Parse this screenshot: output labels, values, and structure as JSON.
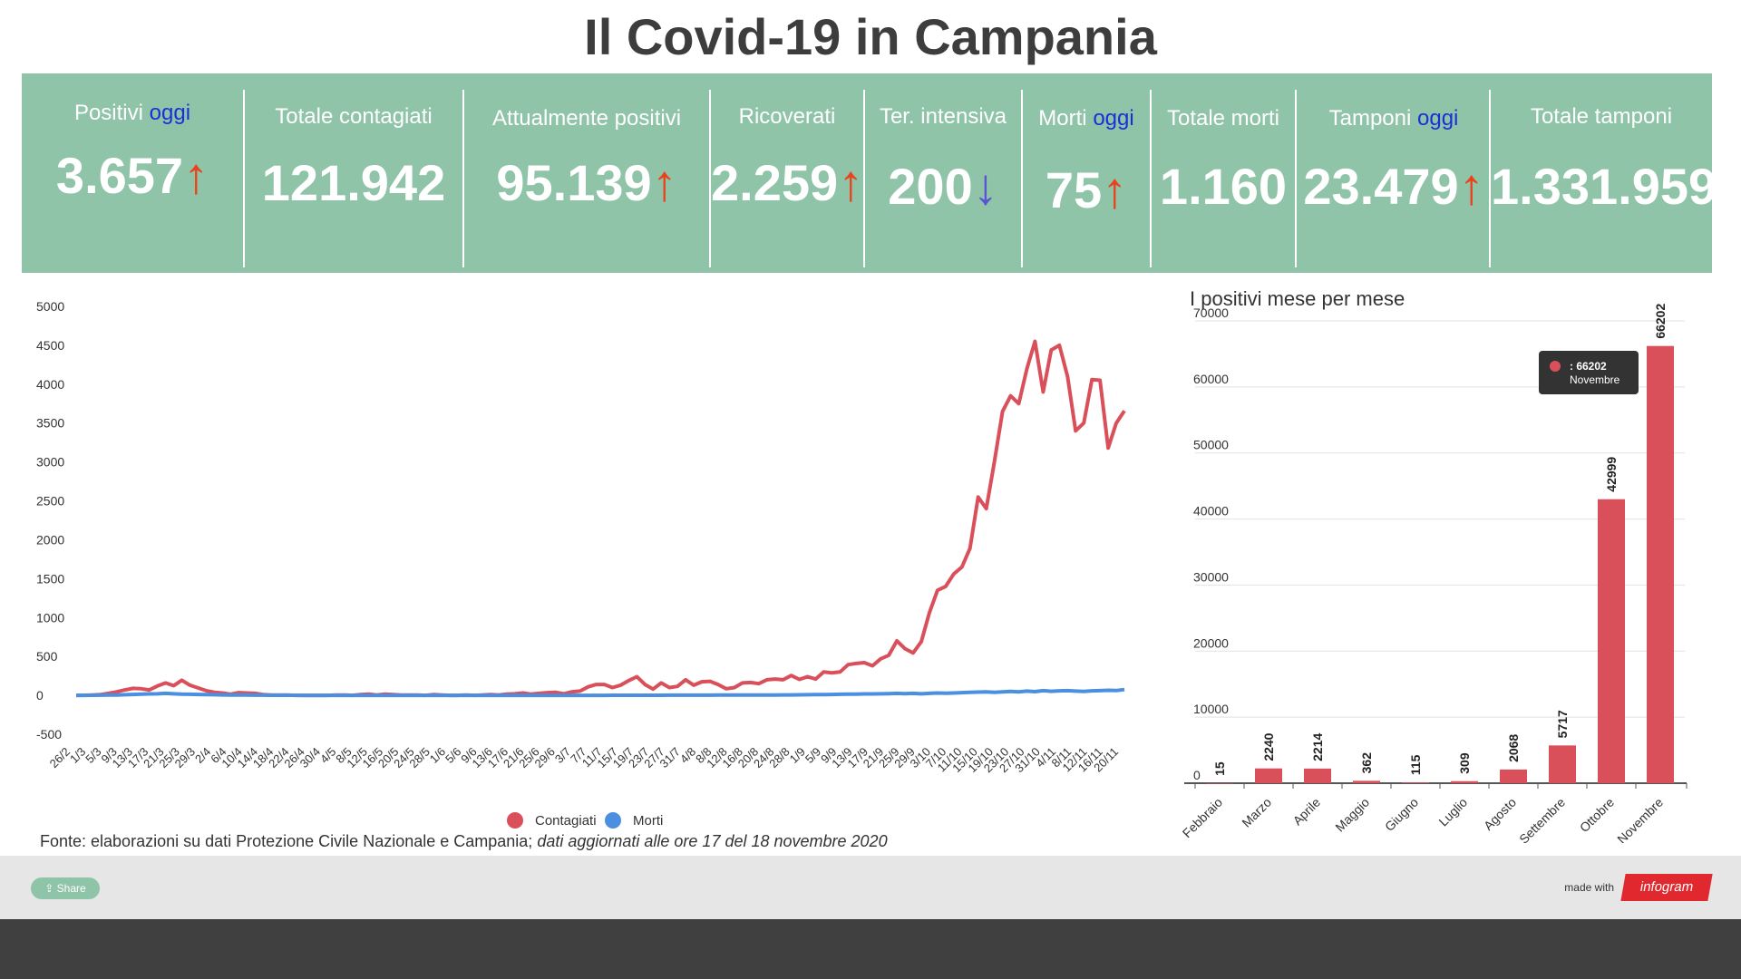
{
  "title": "Il Covid-19 in Campania",
  "stats": [
    {
      "label": "Positivi",
      "today": "oggi",
      "value": "3.657",
      "arrow": "↑",
      "dir": "up"
    },
    {
      "label": "Totale contagiati",
      "today": "",
      "value": "121.942",
      "arrow": "",
      "dir": ""
    },
    {
      "label": "Attualmente positivi",
      "today": "",
      "value": "95.139",
      "arrow": "↑",
      "dir": "up"
    },
    {
      "label": "Ricoverati",
      "today": "",
      "value": "2.259",
      "arrow": "↑",
      "dir": "up"
    },
    {
      "label": "Ter. intensiva",
      "today": "",
      "value": "200",
      "arrow": "↓",
      "dir": "down"
    },
    {
      "label": "Morti",
      "today": "oggi",
      "value": "75",
      "arrow": "↑",
      "dir": "up"
    },
    {
      "label": "Totale morti",
      "today": "",
      "value": "1.160",
      "arrow": "",
      "dir": ""
    },
    {
      "label": "Tamponi",
      "today": "oggi",
      "value": "23.479",
      "arrow": "↑",
      "dir": "up"
    },
    {
      "label": "Totale tamponi",
      "today": "",
      "value": "1.331.959",
      "arrow": "",
      "dir": ""
    }
  ],
  "chart_data": [
    {
      "type": "line",
      "title": "",
      "xlabel": "",
      "ylabel": "",
      "ylim": [
        -500,
        5000
      ],
      "yticks": [
        5000,
        4500,
        4000,
        3500,
        3000,
        2500,
        2000,
        1500,
        1000,
        500,
        0,
        -500
      ],
      "x_labels": [
        "26/2",
        "1/3",
        "5/3",
        "9/3",
        "13/3",
        "17/3",
        "21/3",
        "25/3",
        "29/3",
        "2/4",
        "6/4",
        "10/4",
        "14/4",
        "18/4",
        "22/4",
        "26/4",
        "30/4",
        "4/5",
        "8/5",
        "12/5",
        "16/5",
        "20/5",
        "24/5",
        "28/5",
        "1/6",
        "5/6",
        "9/6",
        "13/6",
        "17/6",
        "21/6",
        "25/6",
        "29/6",
        "3/7",
        "7/7",
        "11/7",
        "15/7",
        "19/7",
        "23/7",
        "27/7",
        "31/7",
        "4/8",
        "8/8",
        "12/8",
        "16/8",
        "20/8",
        "24/8",
        "28/8",
        "1/9",
        "5/9",
        "9/9",
        "13/9",
        "17/9",
        "21/9",
        "25/9",
        "29/9",
        "3/10",
        "7/10",
        "11/10",
        "15/10",
        "19/10",
        "23/10",
        "27/10",
        "31/10",
        "4/11",
        "8/11",
        "12/11",
        "16/11",
        "20/11"
      ],
      "legend": [
        "Contagiati",
        "Morti"
      ],
      "legend_position": "bottom",
      "series": [
        {
          "name": "Contagiati",
          "color": "#d9505a",
          "values": [
            0,
            1,
            5,
            10,
            25,
            45,
            70,
            90,
            85,
            70,
            120,
            160,
            125,
            195,
            130,
            95,
            60,
            40,
            30,
            15,
            35,
            30,
            25,
            10,
            5,
            5,
            5,
            0,
            0,
            0,
            0,
            0,
            5,
            5,
            0,
            10,
            15,
            5,
            15,
            10,
            5,
            5,
            5,
            0,
            10,
            5,
            0,
            0,
            5,
            0,
            5,
            10,
            5,
            15,
            20,
            30,
            15,
            25,
            35,
            40,
            20,
            45,
            55,
            110,
            140,
            140,
            100,
            130,
            190,
            240,
            140,
            80,
            160,
            100,
            115,
            200,
            130,
            175,
            180,
            140,
            85,
            100,
            160,
            165,
            150,
            200,
            210,
            200,
            255,
            205,
            240,
            210,
            300,
            290,
            300,
            395,
            410,
            420,
            380,
            470,
            515,
            700,
            600,
            545,
            690,
            1060,
            1350,
            1400,
            1560,
            1650,
            1890,
            2550,
            2400,
            3000,
            3650,
            3850,
            3750,
            4200,
            4550,
            3900,
            4440,
            4500,
            4100,
            3400,
            3500,
            4060,
            4050,
            3180,
            3500,
            3657
          ]
        },
        {
          "name": "Morti",
          "color": "#4a8fe0",
          "values": [
            0,
            0,
            1,
            2,
            3,
            5,
            8,
            12,
            15,
            18,
            20,
            25,
            20,
            15,
            14,
            12,
            10,
            8,
            6,
            5,
            4,
            3,
            2,
            2,
            1,
            1,
            1,
            1,
            0,
            0,
            0,
            0,
            0,
            0,
            0,
            0,
            0,
            0,
            0,
            0,
            0,
            0,
            0,
            0,
            0,
            0,
            0,
            0,
            0,
            0,
            0,
            0,
            0,
            0,
            0,
            0,
            0,
            0,
            0,
            0,
            0,
            0,
            0,
            0,
            0,
            0,
            1,
            1,
            1,
            1,
            1,
            1,
            1,
            2,
            2,
            2,
            2,
            2,
            2,
            3,
            3,
            3,
            3,
            3,
            4,
            4,
            5,
            6,
            6,
            7,
            8,
            9,
            10,
            12,
            14,
            15,
            16,
            18,
            18,
            20,
            22,
            25,
            22,
            25,
            20,
            25,
            30,
            28,
            30,
            35,
            40,
            42,
            45,
            40,
            45,
            50,
            45,
            55,
            48,
            60,
            52,
            58,
            60,
            55,
            50,
            58,
            60,
            65,
            62,
            75
          ]
        }
      ]
    },
    {
      "type": "bar",
      "title": "I positivi mese per mese",
      "xlabel": "",
      "ylabel": "",
      "ylim": [
        0,
        70000
      ],
      "yticks": [
        70000,
        60000,
        50000,
        40000,
        30000,
        20000,
        10000,
        0
      ],
      "categories": [
        "Febbraio",
        "Marzo",
        "Aprile",
        "Maggio",
        "Giugno",
        "Luglio",
        "Agosto",
        "Settembre",
        "Ottobre",
        "Novembre"
      ],
      "values": [
        15,
        2240,
        2214,
        362,
        115,
        309,
        2068,
        5717,
        42999,
        66202
      ],
      "color": "#d9505a",
      "tooltip": {
        "value": ": 66202",
        "category": "Novembre"
      }
    }
  ],
  "source": {
    "prefix": "Fonte: elaborazioni su dati Protezione Civile Nazionale e Campania; ",
    "italic": "dati aggiornati alle ore 17 del 18 novembre 2020"
  },
  "footer": {
    "share_label": "Share",
    "made_with": "made with",
    "brand": "infogram"
  }
}
